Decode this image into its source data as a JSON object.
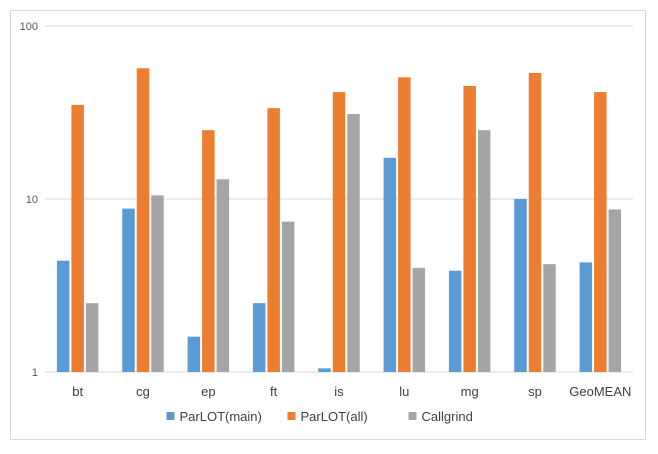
{
  "chart_data": {
    "type": "bar",
    "yscale": "log",
    "ylim": [
      1,
      100
    ],
    "yticks": [
      "1",
      "10",
      "100"
    ],
    "grid": true,
    "legend_position": "bottom",
    "title": "",
    "xlabel": "",
    "ylabel": "",
    "categories": [
      "bt",
      "cg",
      "ep",
      "ft",
      "is",
      "lu",
      "mg",
      "sp",
      "GeoMEAN"
    ],
    "series": [
      {
        "name": "ParLOT(main)",
        "color": "#5b9bd5",
        "values": [
          4.4,
          8.8,
          1.6,
          2.5,
          1.05,
          17.3,
          3.85,
          10.0,
          4.3
        ]
      },
      {
        "name": "ParLOT(all)",
        "color": "#ed7d31",
        "values": [
          35.0,
          57.0,
          25.0,
          33.5,
          41.5,
          50.5,
          45.0,
          53.5,
          41.5
        ]
      },
      {
        "name": "Callgrind",
        "color": "#a5a5a5",
        "values": [
          2.5,
          10.5,
          13.0,
          7.4,
          31.0,
          4.0,
          25.0,
          4.2,
          8.7
        ]
      }
    ]
  }
}
